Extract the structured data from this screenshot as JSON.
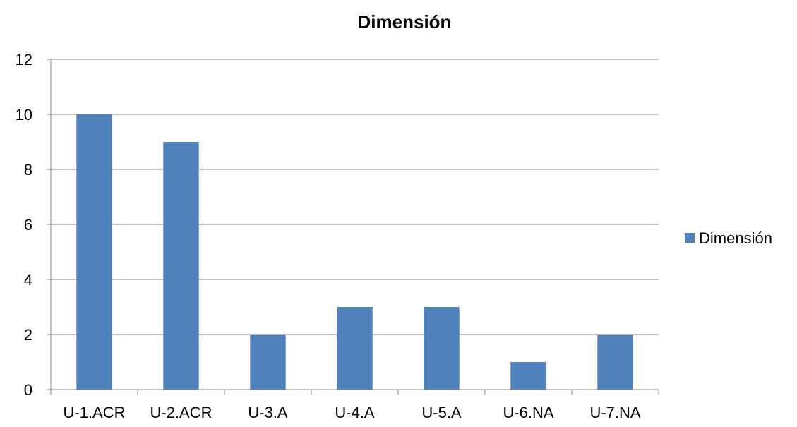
{
  "chart_data": {
    "type": "bar",
    "title": "Dimensión",
    "xlabel": "",
    "ylabel": "",
    "categories": [
      "U-1.ACR",
      "U-2.ACR",
      "U-3.A",
      "U-4.A",
      "U-5.A",
      "U-6.NA",
      "U-7.NA"
    ],
    "series": [
      {
        "name": "Dimensión",
        "values": [
          10,
          9,
          2,
          3,
          3,
          1,
          2
        ],
        "color": "#4f81bd"
      }
    ],
    "ylim": [
      0,
      12
    ],
    "yticks": [
      0,
      2,
      4,
      6,
      8,
      10,
      12
    ],
    "grid": true,
    "legend_position": "right",
    "colors": {
      "gridline": "#868686",
      "axis": "#868686"
    }
  }
}
